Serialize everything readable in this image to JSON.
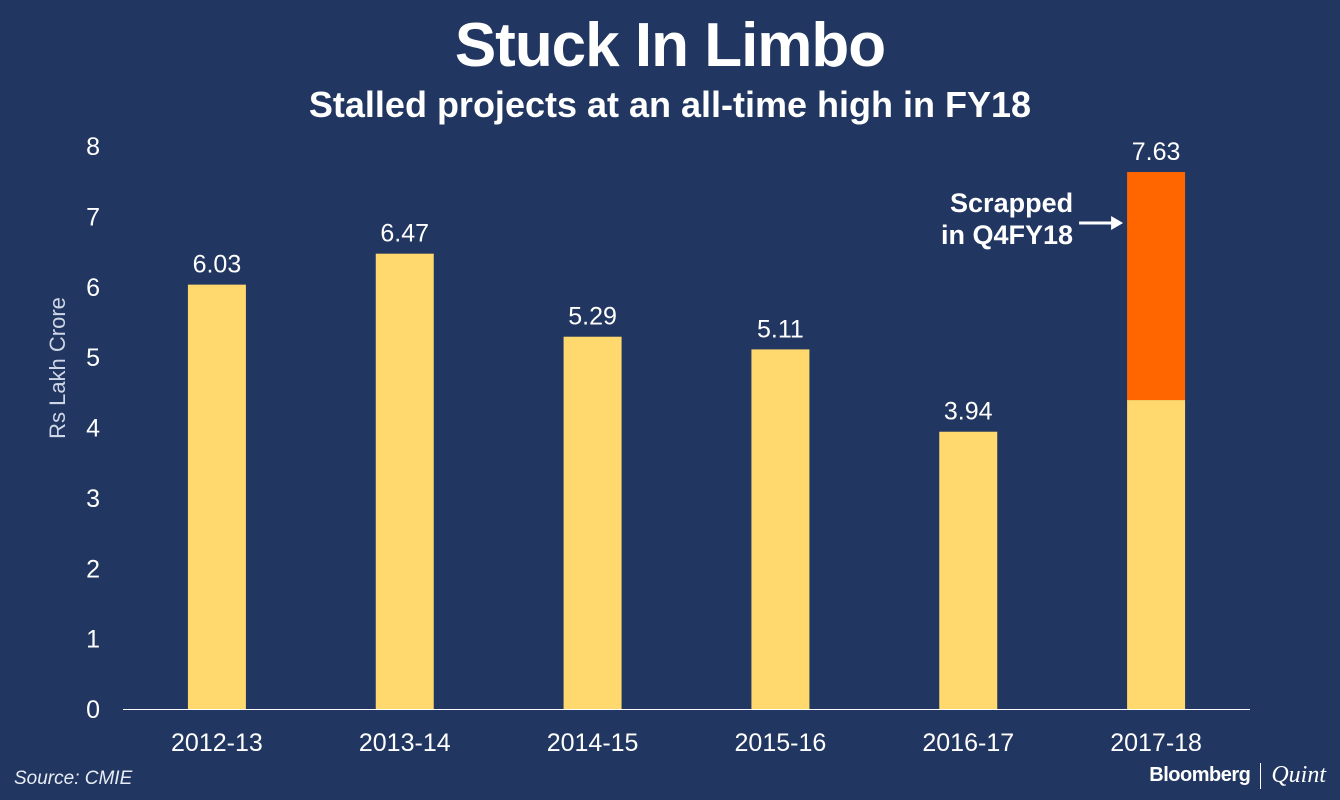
{
  "chart_data": {
    "type": "bar",
    "title": "Stuck In Limbo",
    "subtitle": "Stalled projects at an all-time high in FY18",
    "ylabel": "Rs Lakh Crore",
    "xlabel": "",
    "ylim": [
      0,
      8
    ],
    "yticks": [
      "0",
      "1",
      "2",
      "3",
      "4",
      "5",
      "6",
      "7",
      "8"
    ],
    "categories": [
      "2012-13",
      "2013-14",
      "2014-15",
      "2015-16",
      "2016-17",
      "2017-18"
    ],
    "values": [
      6.03,
      6.47,
      5.29,
      5.11,
      3.94,
      7.63
    ],
    "value_labels": [
      "6.03",
      "6.47",
      "5.29",
      "5.11",
      "3.94",
      "7.63"
    ],
    "highlight": {
      "category": "2017-18",
      "base_value": 4.39,
      "scrapped_value": 3.24
    },
    "annotation": {
      "line1": "Scrapped",
      "line2": "in Q4FY18"
    },
    "grid": false,
    "colors": {
      "background": "#213660",
      "bar": "#FFD86E",
      "scrapped": "#FF6600",
      "text": "#FFFFFF"
    }
  },
  "source": "Source: CMIE",
  "brand": {
    "name": "Bloomberg",
    "partner": "Quint"
  }
}
